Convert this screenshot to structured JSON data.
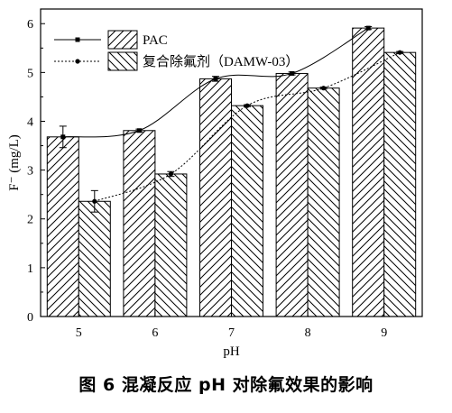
{
  "chart_data": {
    "type": "bar",
    "categories": [
      "5",
      "6",
      "7",
      "8",
      "9"
    ],
    "xlabel": "pH",
    "ylabel": "F⁻ (mg/L)",
    "ylim": [
      0,
      6.3
    ],
    "yticks": [
      0,
      1,
      2,
      3,
      4,
      5,
      6
    ],
    "legend_position": "top-left",
    "grid": false,
    "series": [
      {
        "name": "PAC",
        "values": [
          3.68,
          3.81,
          4.87,
          4.98,
          5.91
        ],
        "errors": [
          0.22,
          0.03,
          0.05,
          0.03,
          0.03
        ],
        "hatch": "forward-diagonal",
        "line_style": "solid",
        "marker": "square"
      },
      {
        "name": "复合除氟剂（DAMW-03）",
        "values": [
          2.36,
          2.92,
          4.32,
          4.68,
          5.41
        ],
        "errors": [
          0.22,
          0.05,
          0.02,
          0.02,
          0.02
        ],
        "hatch": "back-diagonal",
        "line_style": "dotted",
        "marker": "circle"
      }
    ]
  },
  "caption": "图 6 混凝反应 pH 对除氟效果的影响"
}
